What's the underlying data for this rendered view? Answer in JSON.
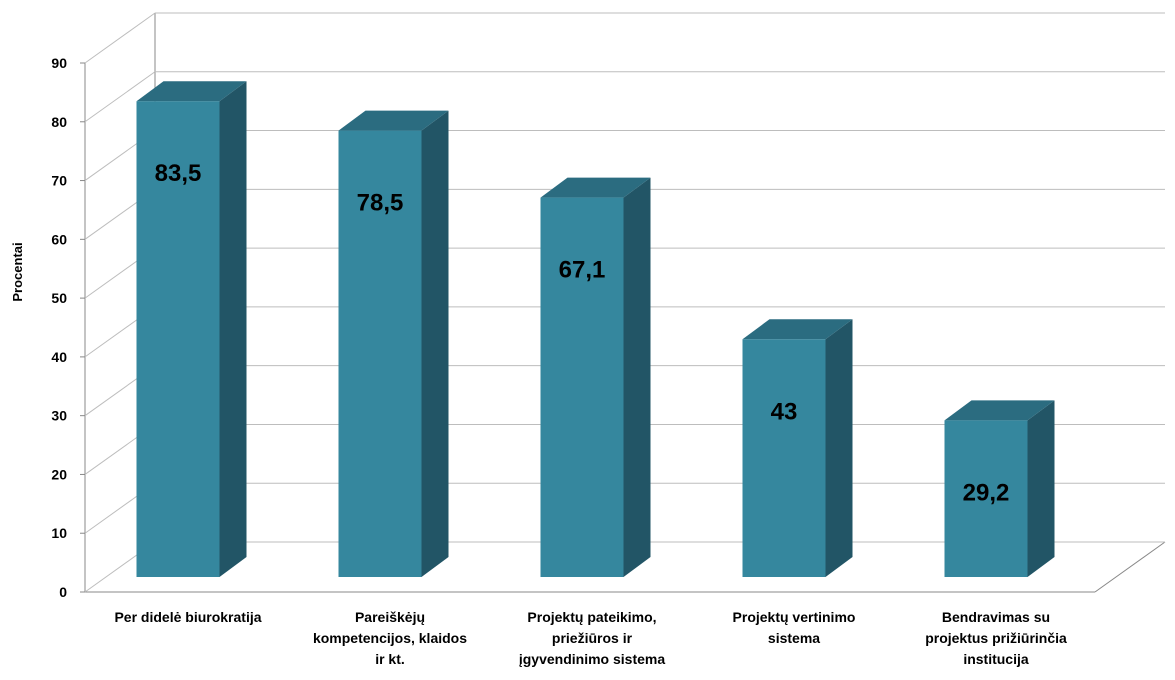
{
  "chart_data": {
    "type": "bar",
    "ylabel": "Procentai",
    "ylim": [
      0,
      90
    ],
    "yticks": [
      0,
      10,
      20,
      30,
      40,
      50,
      60,
      70,
      80,
      90
    ],
    "grid": true,
    "categories": [
      [
        "Per didelė biurokratija"
      ],
      [
        "Pareiškėjų",
        "kompetencijos, klaidos",
        "ir kt."
      ],
      [
        "Projektų pateikimo,",
        "priežiūros ir",
        "įgyvendinimo sistema"
      ],
      [
        "Projektų vertinimo",
        "sistema"
      ],
      [
        "Bendravimas su",
        "projektus prižiūrinčia",
        "institucija"
      ]
    ],
    "values": [
      83.5,
      78.5,
      67.1,
      43,
      29.2
    ],
    "data_labels": [
      "83,5",
      "78,5",
      "67,1",
      "43",
      "29,2"
    ],
    "colors": {
      "bar_front": "#35879E",
      "bar_side": "#225566",
      "bar_top": "#2B6C80",
      "grid": "#bdbdbd",
      "wall": "#888888"
    }
  }
}
